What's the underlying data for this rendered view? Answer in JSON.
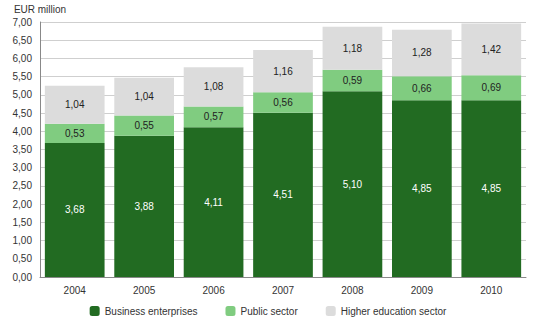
{
  "chart_data": {
    "type": "bar",
    "stacked": true,
    "y_label": "EUR million",
    "categories": [
      "2004",
      "2005",
      "2006",
      "2007",
      "2008",
      "2009",
      "2010"
    ],
    "series": [
      {
        "name": "Business enterprises",
        "color": "#226b22",
        "values": [
          3.68,
          3.88,
          4.11,
          4.51,
          5.1,
          4.85,
          4.85
        ],
        "value_labels": [
          "3,68",
          "3,88",
          "4,11",
          "4,51",
          "5,10",
          "4,85",
          "4,85"
        ]
      },
      {
        "name": "Public sector",
        "color": "#80cc80",
        "values": [
          0.53,
          0.55,
          0.57,
          0.56,
          0.59,
          0.66,
          0.69
        ],
        "value_labels": [
          "0,53",
          "0,55",
          "0,57",
          "0,56",
          "0,59",
          "0,66",
          "0,69"
        ]
      },
      {
        "name": "Higher education sector",
        "color": "#dcdcdc",
        "values": [
          1.04,
          1.04,
          1.08,
          1.16,
          1.18,
          1.28,
          1.42
        ],
        "value_labels": [
          "1,04",
          "1,04",
          "1,08",
          "1,16",
          "1,18",
          "1,28",
          "1,42"
        ]
      }
    ],
    "ylim": [
      0,
      7
    ],
    "yticks": [
      {
        "value": 0,
        "label": "0,00"
      },
      {
        "value": 0.5,
        "label": "0,50"
      },
      {
        "value": 1,
        "label": "1,00"
      },
      {
        "value": 1.5,
        "label": "1,50"
      },
      {
        "value": 2,
        "label": "2,00"
      },
      {
        "value": 2.5,
        "label": "2,50"
      },
      {
        "value": 3,
        "label": "3,00"
      },
      {
        "value": 3.5,
        "label": "3,50"
      },
      {
        "value": 4,
        "label": "4,00"
      },
      {
        "value": 4.5,
        "label": "4,50"
      },
      {
        "value": 5,
        "label": "5,00"
      },
      {
        "value": 5.5,
        "label": "5,50"
      },
      {
        "value": 6,
        "label": "6,00"
      },
      {
        "value": 6.5,
        "label": "6,50"
      },
      {
        "value": 7,
        "label": "7,00"
      }
    ],
    "grid": true,
    "legend": "bottom",
    "data_labels": true
  }
}
